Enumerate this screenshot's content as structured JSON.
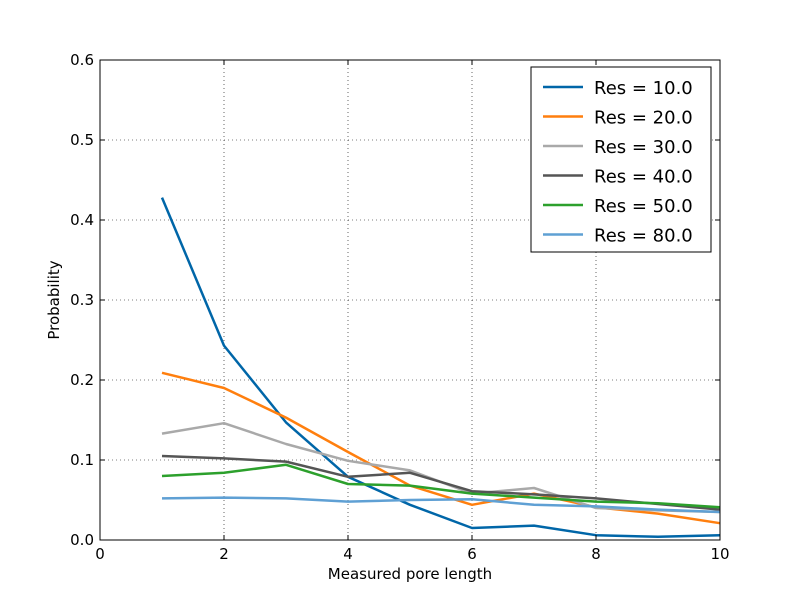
{
  "chart_data": {
    "type": "line",
    "title": "",
    "xlabel": "Measured pore length",
    "ylabel": "Probability",
    "xlim": [
      0,
      10
    ],
    "ylim": [
      0,
      0.6
    ],
    "x_ticks": [
      "0",
      "2",
      "4",
      "6",
      "8",
      "10"
    ],
    "y_ticks": [
      "0.0",
      "0.1",
      "0.2",
      "0.3",
      "0.4",
      "0.5",
      "0.6"
    ],
    "grid": true,
    "legend_position": "top-right",
    "x": [
      1,
      2,
      3,
      4,
      5,
      6,
      7,
      8,
      9,
      10
    ],
    "series": [
      {
        "name": "Res = 10.0",
        "color": "#0066a8",
        "values": [
          0.428,
          0.243,
          0.147,
          0.079,
          0.044,
          0.015,
          0.018,
          0.006,
          0.004,
          0.006
        ]
      },
      {
        "name": "Res = 20.0",
        "color": "#ff7f0e",
        "values": [
          0.209,
          0.19,
          0.153,
          0.11,
          0.068,
          0.044,
          0.058,
          0.041,
          0.033,
          0.021
        ]
      },
      {
        "name": "Res = 30.0",
        "color": "#a9a9a9",
        "values": [
          0.133,
          0.146,
          0.12,
          0.099,
          0.087,
          0.058,
          0.065,
          0.04,
          0.037,
          0.035
        ]
      },
      {
        "name": "Res = 40.0",
        "color": "#555555",
        "values": [
          0.105,
          0.102,
          0.098,
          0.079,
          0.084,
          0.061,
          0.057,
          0.052,
          0.045,
          0.038
        ]
      },
      {
        "name": "Res = 50.0",
        "color": "#2ca02c",
        "values": [
          0.08,
          0.084,
          0.094,
          0.07,
          0.068,
          0.058,
          0.053,
          0.048,
          0.046,
          0.041
        ]
      },
      {
        "name": "Res = 80.0",
        "color": "#5fa0d4",
        "values": [
          0.052,
          0.053,
          0.052,
          0.048,
          0.05,
          0.051,
          0.044,
          0.042,
          0.038,
          0.035
        ]
      }
    ]
  }
}
